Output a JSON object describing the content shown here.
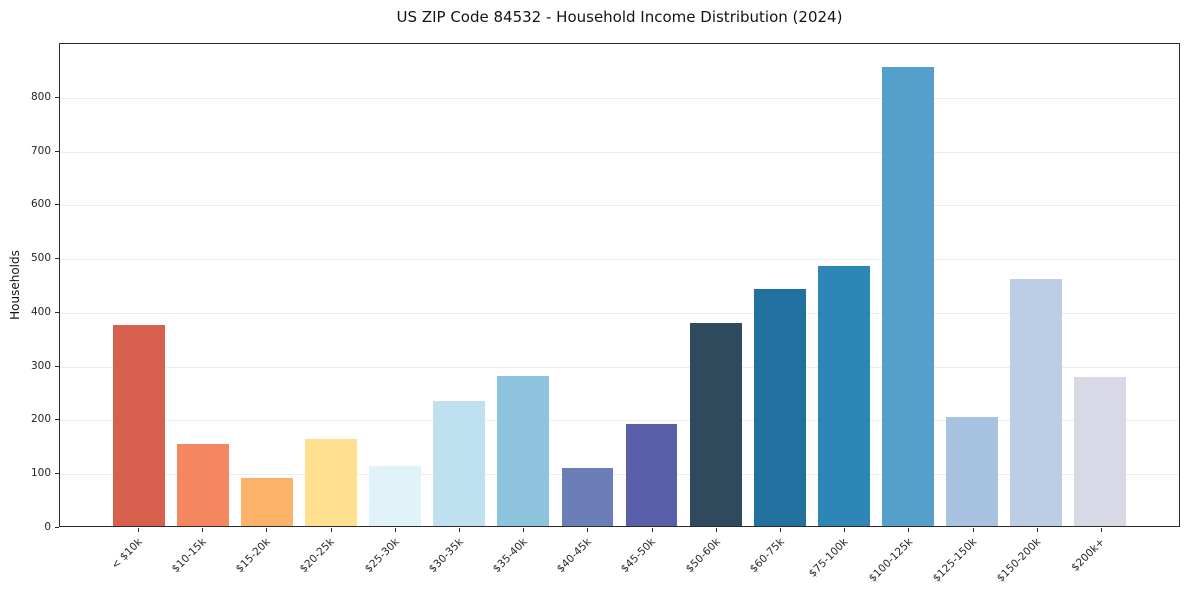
{
  "chart_data": {
    "type": "bar",
    "title": "US ZIP Code 84532 - Household Income Distribution (2024)",
    "xlabel": "",
    "ylabel": "Households",
    "ylim": [
      0,
      900
    ],
    "yticks": [
      0,
      100,
      200,
      300,
      400,
      500,
      600,
      700,
      800
    ],
    "grid": true,
    "legend": false,
    "categories": [
      "< $10k",
      "$10-15k",
      "$15-20k",
      "$20-25k",
      "$25-30k",
      "$30-35k",
      "$35-40k",
      "$40-45k",
      "$45-50k",
      "$50-60k",
      "$60-75k",
      "$75-100k",
      "$100-125k",
      "$125-150k",
      "$150-200k",
      "$200k+"
    ],
    "values": [
      373,
      153,
      90,
      162,
      111,
      233,
      279,
      107,
      190,
      378,
      441,
      484,
      853,
      203,
      460,
      277
    ],
    "bar_colors": [
      "#d6604d",
      "#f4875f",
      "#fcb369",
      "#fee090",
      "#e0f3f8",
      "#bfe0ee",
      "#8ec3de",
      "#6b7eb8",
      "#5a5fa9",
      "#2e4a5c",
      "#2170a0",
      "#2e86b8",
      "#54a0cb",
      "#a7c3e0",
      "#bccde6",
      "#d8d9e6"
    ]
  }
}
